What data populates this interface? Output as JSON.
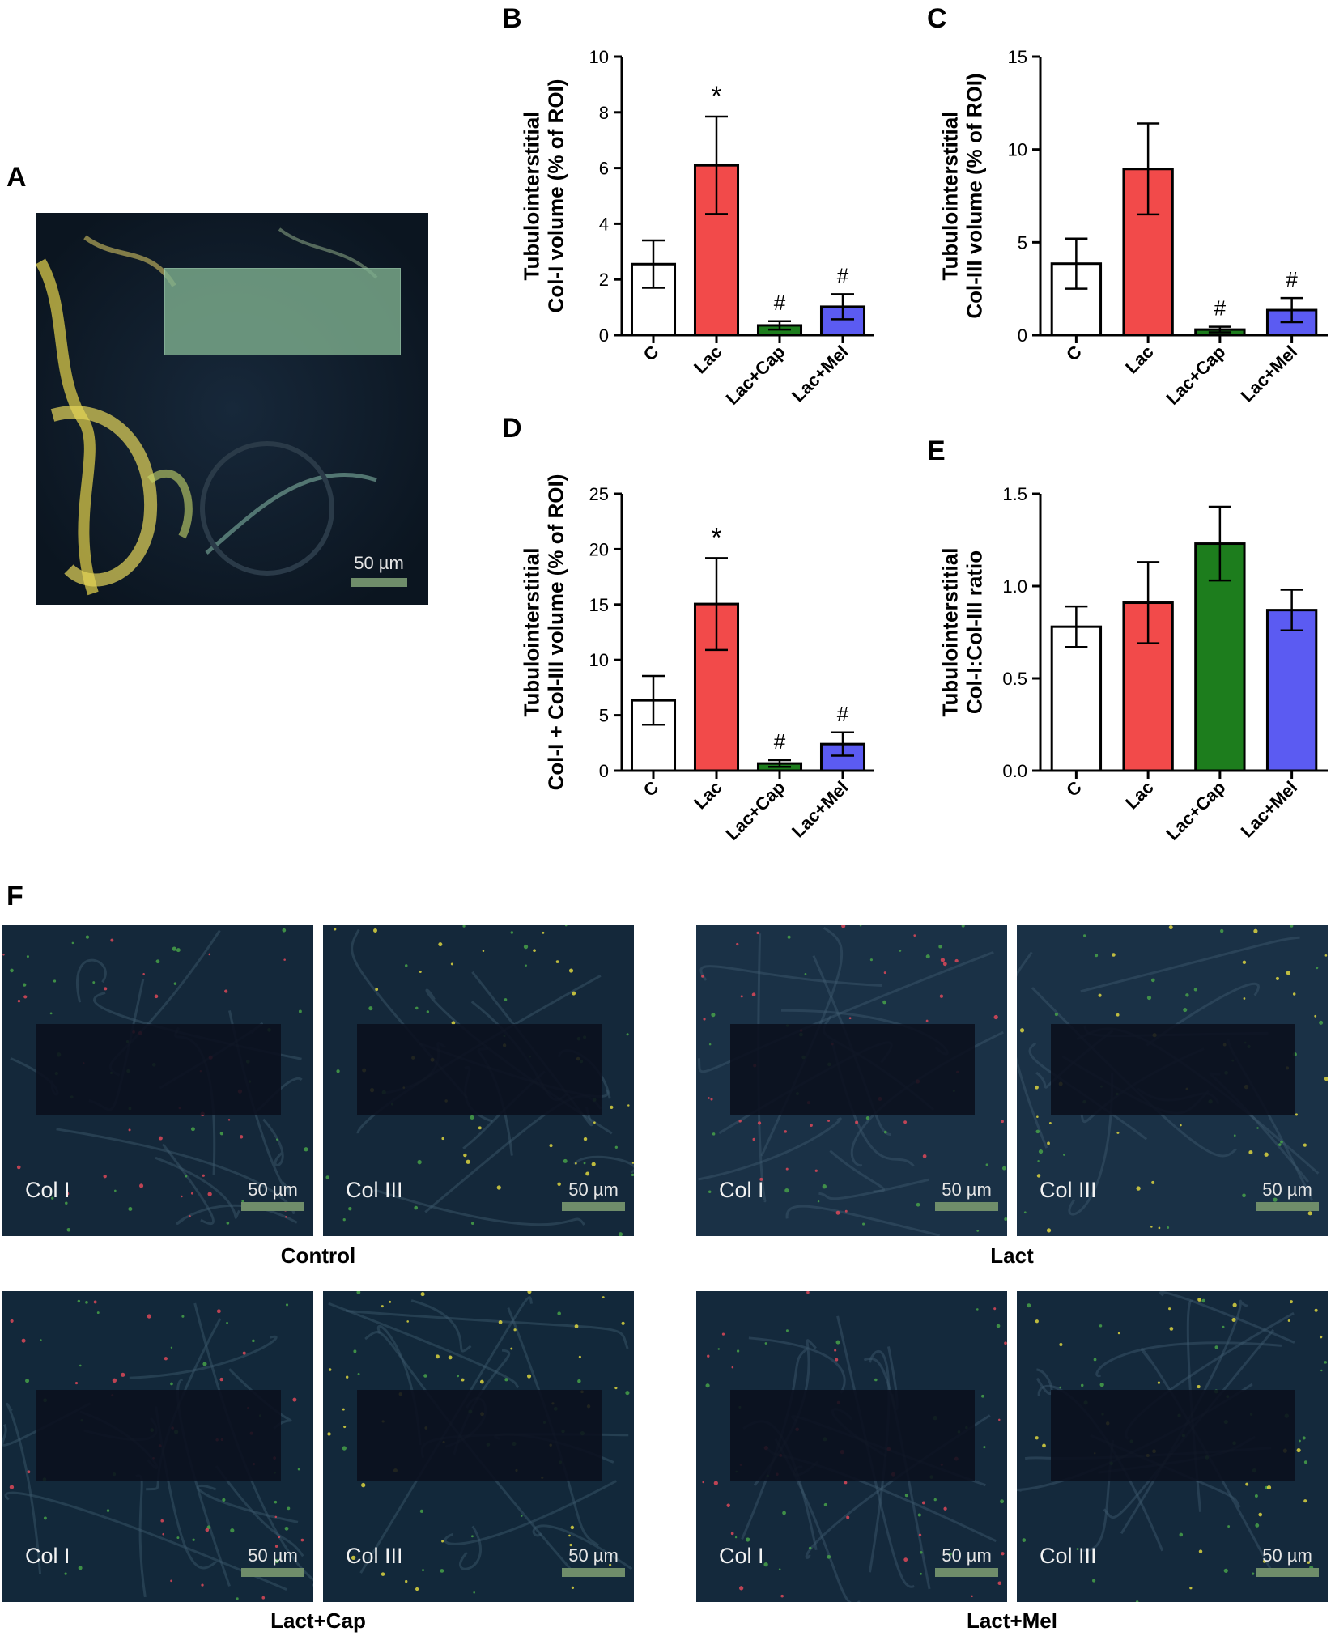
{
  "panel_letters": {
    "A": "A",
    "B": "B",
    "C": "C",
    "D": "D",
    "E": "E",
    "F": "F"
  },
  "panel_a": {
    "scale_bar": "50 µm"
  },
  "colors": {
    "C": "#ffffff",
    "Lac": "#f24a4a",
    "Lac+Cap": "#1d7d1d",
    "Lac+Mel": "#5b5bf2",
    "roi_a": "#7fb08f"
  },
  "chart_data": [
    {
      "id": "B",
      "type": "bar",
      "ylabel_line1": "Tubulointerstitial",
      "ylabel_line2": "Col-I volume (% of ROI)",
      "categories": [
        "C",
        "Lac",
        "Lac+Cap",
        "Lac+Mel"
      ],
      "values": [
        2.55,
        6.1,
        0.35,
        1.02
      ],
      "errors": [
        0.85,
        1.75,
        0.15,
        0.45
      ],
      "annotations": [
        "",
        "*",
        "#",
        "#"
      ],
      "ylim": [
        0,
        10
      ],
      "yticks": [
        "0",
        "2",
        "4",
        "6",
        "8",
        "10"
      ],
      "ytick_values": [
        0,
        2,
        4,
        6,
        8,
        10
      ]
    },
    {
      "id": "C",
      "type": "bar",
      "ylabel_line1": "Tubulointerstitial",
      "ylabel_line2": "Col-III volume (% of ROI)",
      "categories": [
        "C",
        "Lac",
        "Lac+Cap",
        "Lac+Mel"
      ],
      "values": [
        3.85,
        8.95,
        0.3,
        1.35
      ],
      "errors": [
        1.35,
        2.45,
        0.15,
        0.65
      ],
      "annotations": [
        "",
        "",
        "#",
        "#"
      ],
      "ylim": [
        0,
        15
      ],
      "yticks": [
        "0",
        "5",
        "10",
        "15"
      ],
      "ytick_values": [
        0,
        5,
        10,
        15
      ]
    },
    {
      "id": "D",
      "type": "bar",
      "ylabel_line1": "Tubulointerstitial",
      "ylabel_line2": "Col-I + Col-III volume (% of ROI)",
      "categories": [
        "C",
        "Lac",
        "Lac+Cap",
        "Lac+Mel"
      ],
      "values": [
        6.35,
        15.05,
        0.65,
        2.4
      ],
      "errors": [
        2.2,
        4.15,
        0.3,
        1.05
      ],
      "annotations": [
        "",
        "*",
        "#",
        "#"
      ],
      "ylim": [
        0,
        25
      ],
      "yticks": [
        "0",
        "5",
        "10",
        "15",
        "20",
        "25"
      ],
      "ytick_values": [
        0,
        5,
        10,
        15,
        20,
        25
      ]
    },
    {
      "id": "E",
      "type": "bar",
      "ylabel_line1": "Tubulointerstitial",
      "ylabel_line2": "Col-I:Col-III ratio",
      "categories": [
        "C",
        "Lac",
        "Lac+Cap",
        "Lac+Mel"
      ],
      "values": [
        0.78,
        0.91,
        1.23,
        0.87
      ],
      "errors": [
        0.11,
        0.22,
        0.2,
        0.11
      ],
      "annotations": [
        "",
        "",
        "",
        ""
      ],
      "ylim": [
        0,
        1.5
      ],
      "yticks": [
        "0.0",
        "0.5",
        "1.0",
        "1.5"
      ],
      "ytick_values": [
        0,
        0.5,
        1,
        1.5
      ]
    }
  ],
  "panel_f": {
    "groups": [
      {
        "name": "Control",
        "images": [
          {
            "label": "Col I",
            "scale_bar": "50 µm"
          },
          {
            "label": "Col III",
            "scale_bar": "50 µm"
          }
        ]
      },
      {
        "name": "Lact",
        "images": [
          {
            "label": "Col I",
            "scale_bar": "50 µm"
          },
          {
            "label": "Col III",
            "scale_bar": "50 µm"
          }
        ]
      },
      {
        "name": "Lact+Cap",
        "images": [
          {
            "label": "Col I",
            "scale_bar": "50 µm"
          },
          {
            "label": "Col III",
            "scale_bar": "50 µm"
          }
        ]
      },
      {
        "name": "Lact+Mel",
        "images": [
          {
            "label": "Col I",
            "scale_bar": "50 µm"
          },
          {
            "label": "Col III",
            "scale_bar": "50 µm"
          }
        ]
      }
    ]
  }
}
